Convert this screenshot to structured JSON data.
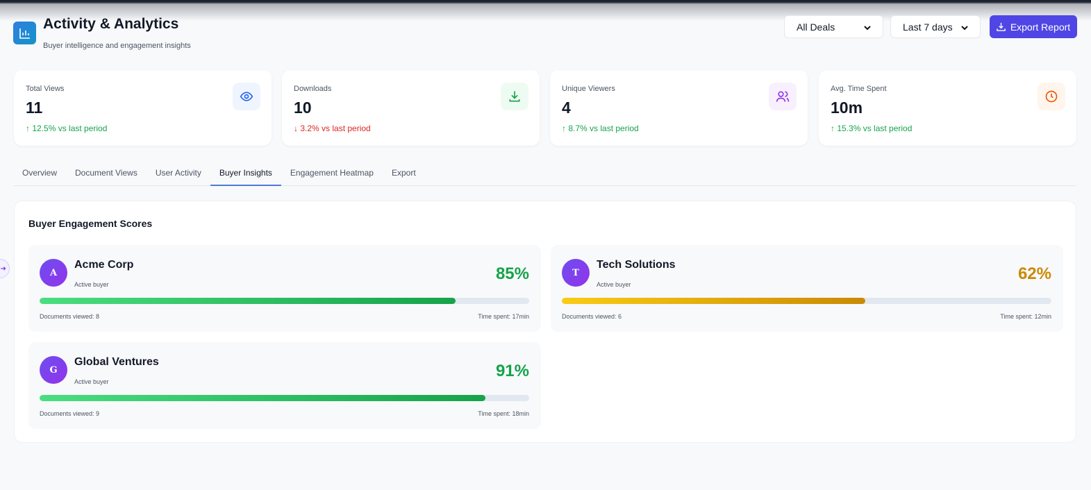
{
  "header": {
    "title": "Activity & Analytics",
    "subtitle": "Buyer intelligence and engagement insights",
    "deal_filter": "All Deals",
    "period_filter": "Last 7 days",
    "export_label": "Export Report"
  },
  "stats": [
    {
      "label": "Total Views",
      "value": "11",
      "change": "12.5% vs last period",
      "trend": "up",
      "icon": "eye-icon",
      "color": "#2563eb"
    },
    {
      "label": "Downloads",
      "value": "10",
      "change": "3.2% vs last period",
      "trend": "down",
      "icon": "download-icon",
      "color": "#16a34a"
    },
    {
      "label": "Unique Viewers",
      "value": "4",
      "change": "8.7% vs last period",
      "trend": "up",
      "icon": "users-icon",
      "color": "#9333ea"
    },
    {
      "label": "Avg. Time Spent",
      "value": "10m",
      "change": "15.3% vs last period",
      "trend": "up",
      "icon": "clock-icon",
      "color": "#ea580c"
    }
  ],
  "tabs": [
    "Overview",
    "Document Views",
    "User Activity",
    "Buyer Insights",
    "Engagement Heatmap",
    "Export"
  ],
  "active_tab": "Buyer Insights",
  "panel": {
    "title": "Buyer Engagement Scores",
    "buyers": [
      {
        "initial": "A",
        "name": "Acme Corp",
        "status": "Active buyer",
        "score": "85%",
        "score_value": 85,
        "docs": "Documents viewed: 8",
        "time": "Time spent: 17min",
        "color": "#16a34a"
      },
      {
        "initial": "T",
        "name": "Tech Solutions",
        "status": "Active buyer",
        "score": "62%",
        "score_value": 62,
        "docs": "Documents viewed: 6",
        "time": "Time spent: 12min",
        "color": "#ca8a04"
      },
      {
        "initial": "G",
        "name": "Global Ventures",
        "status": "Active buyer",
        "score": "91%",
        "score_value": 91,
        "docs": "Documents viewed: 9",
        "time": "Time spent: 18min",
        "color": "#16a34a"
      }
    ]
  }
}
